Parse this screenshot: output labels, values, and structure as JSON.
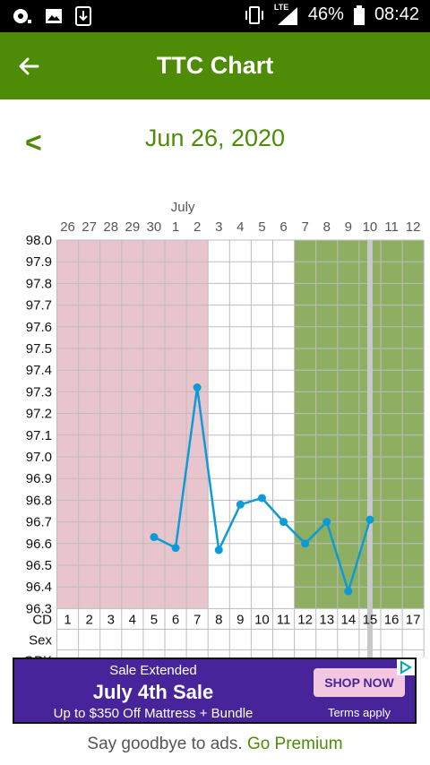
{
  "status_bar": {
    "battery": "46%",
    "time": "08:42",
    "network": "LTE"
  },
  "app_bar": {
    "title": "TTC Chart"
  },
  "date_nav": {
    "prev_symbol": "<",
    "date": "Jun 26, 2020"
  },
  "chart_data": {
    "type": "line",
    "month_label": "July",
    "x_dates": [
      "26",
      "27",
      "28",
      "29",
      "30",
      "1",
      "2",
      "3",
      "4",
      "5",
      "6",
      "7",
      "8",
      "9",
      "10",
      "11",
      "12"
    ],
    "cycle_days": [
      "1",
      "2",
      "3",
      "4",
      "5",
      "6",
      "7",
      "8",
      "9",
      "10",
      "11",
      "12",
      "13",
      "14",
      "15",
      "16",
      "17"
    ],
    "y_ticks": [
      "98.0",
      "97.9",
      "97.8",
      "97.7",
      "97.6",
      "97.5",
      "97.4",
      "97.3",
      "97.2",
      "97.1",
      "97.0",
      "96.9",
      "96.8",
      "96.7",
      "96.6",
      "96.5",
      "96.4",
      "96.3"
    ],
    "ylim": [
      96.3,
      98.0
    ],
    "row_labels": [
      "CD",
      "Sex",
      "OPK"
    ],
    "series": [
      {
        "x": [
          5,
          6,
          7,
          8,
          9,
          10,
          11,
          12,
          13,
          14,
          15
        ],
        "values": [
          96.63,
          96.58,
          97.32,
          96.57,
          96.78,
          96.81,
          96.7,
          96.6,
          96.7,
          96.38,
          96.71
        ]
      }
    ],
    "period_range_cd": [
      1,
      7
    ],
    "fertile_range_cd": [
      12,
      17
    ],
    "today_cd": 15,
    "colors": {
      "period": "#e8c4cd",
      "fertile": "#8eae62",
      "line": "#0d9bd8",
      "today": "#c8c8c8"
    }
  },
  "ad": {
    "line1": "Sale Extended",
    "line2": "July 4th Sale",
    "line3": "Up to $350 Off Mattress + Bundle",
    "button": "SHOP NOW",
    "terms": "Terms apply"
  },
  "footer": {
    "text": "Say goodbye to ads.",
    "link": "Go Premium"
  },
  "icons": [
    "notification-icon",
    "image-icon",
    "download-icon",
    "vibrate-icon",
    "signal-icon",
    "battery-icon",
    "back-arrow-icon",
    "adchoices-icon"
  ]
}
